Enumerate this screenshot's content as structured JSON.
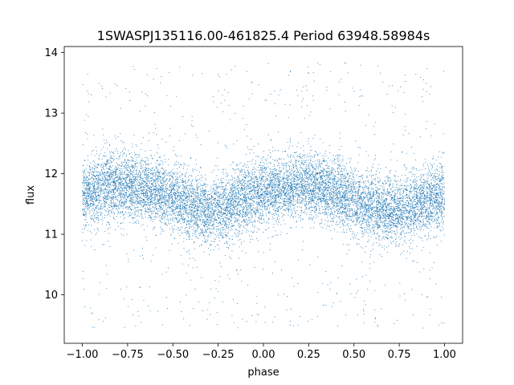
{
  "chart_data": {
    "type": "scatter",
    "title": "1SWASPJ135116.00-461825.4 Period 63948.58984s",
    "xlabel": "phase",
    "ylabel": "flux",
    "xlim": [
      -1.1,
      1.1
    ],
    "ylim": [
      9.2,
      14.1
    ],
    "xticks": [
      -1.0,
      -0.75,
      -0.5,
      -0.25,
      0.0,
      0.25,
      0.5,
      0.75,
      1.0
    ],
    "xtick_labels": [
      "−1.00",
      "−0.75",
      "−0.50",
      "−0.25",
      "0.00",
      "0.25",
      "0.50",
      "0.75",
      "1.00"
    ],
    "yticks": [
      10,
      11,
      12,
      13,
      14
    ],
    "ytick_labels": [
      "10",
      "11",
      "12",
      "13",
      "14"
    ],
    "grid": false,
    "legend": "none",
    "marker_color": "#1f77b4",
    "phase_range": [
      -1.0,
      1.0
    ],
    "flux_range": [
      9.45,
      13.85
    ],
    "profile": {
      "phase": [
        -1.0,
        -0.9,
        -0.8,
        -0.7,
        -0.6,
        -0.5,
        -0.4,
        -0.3,
        -0.2,
        -0.1,
        0.0,
        0.1,
        0.2,
        0.3,
        0.4,
        0.5,
        0.6,
        0.7,
        0.8,
        0.9,
        1.0
      ],
      "median_flux": [
        11.65,
        11.75,
        11.8,
        11.8,
        11.72,
        11.58,
        11.48,
        11.38,
        11.45,
        11.6,
        11.7,
        11.75,
        11.8,
        11.8,
        11.7,
        11.55,
        11.45,
        11.38,
        11.45,
        11.55,
        11.65
      ]
    },
    "series": [
      {
        "scatter_sigma": 0.27,
        "outlier_fraction": 0.06
      }
    ]
  }
}
